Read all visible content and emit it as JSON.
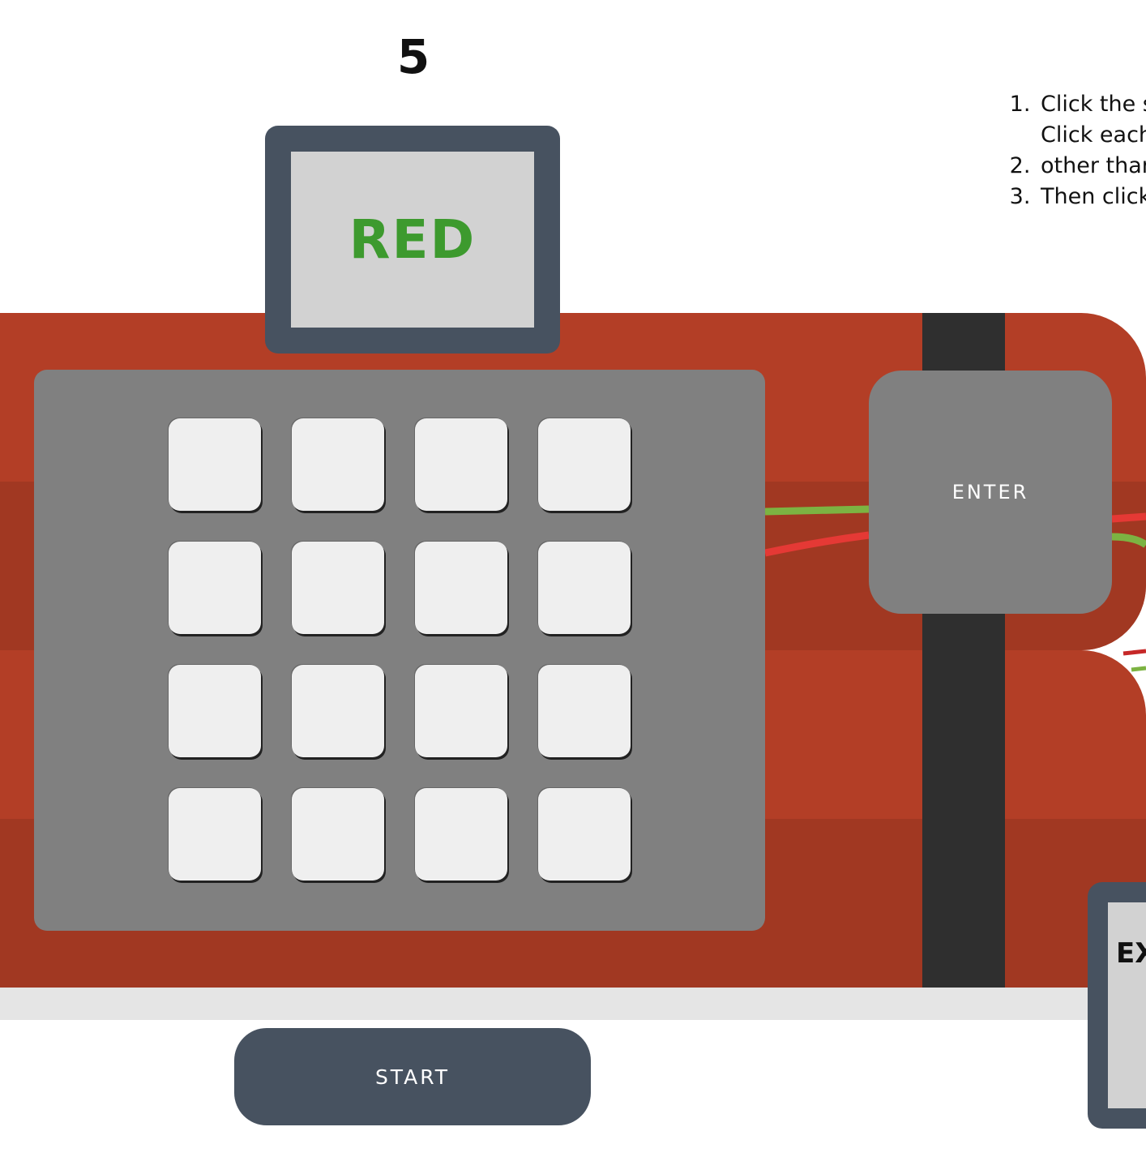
{
  "counter": "5",
  "instructions": [
    "Click the s",
    "Click each other than",
    "Then click"
  ],
  "display": {
    "word": "RED",
    "word_color": "#3d9a2e"
  },
  "keypad": {
    "rows": 4,
    "cols": 4
  },
  "enter_label": "ENTER",
  "start_label": "START",
  "explode_label": "EX",
  "colors": {
    "stick": "#b33e26",
    "frame": "#475260",
    "panel": "#808080",
    "key": "#efefef",
    "wire_green": "#7cb342",
    "wire_red": "#e53935"
  }
}
